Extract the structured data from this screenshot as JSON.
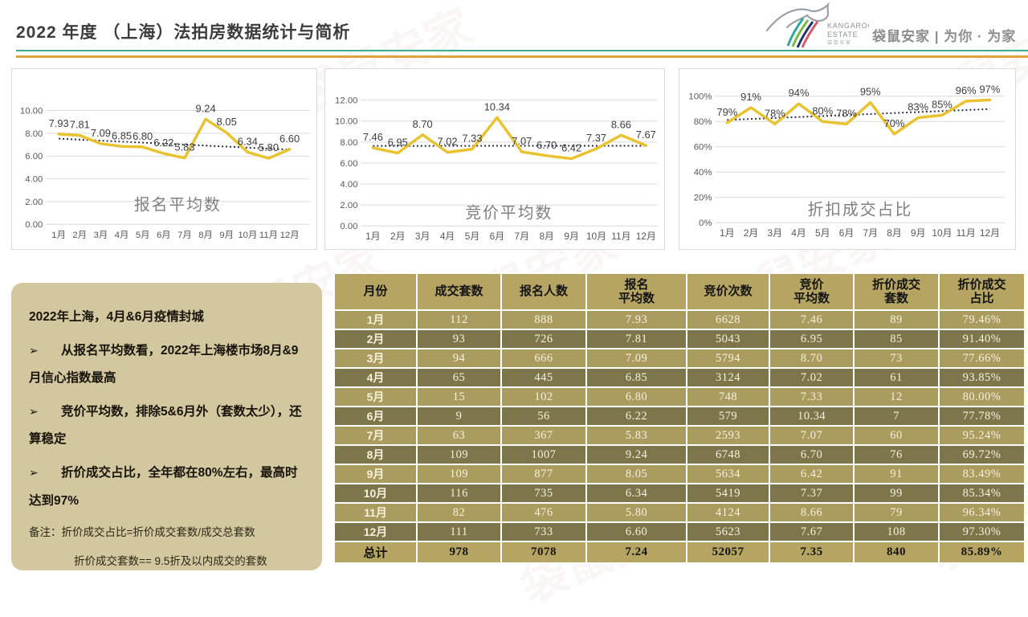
{
  "page": {
    "title": "2022 年度 （上海）法拍房数据统计与简析",
    "watermark": "袋鼠安家"
  },
  "logo": {
    "brand_line1": "KANGAROO",
    "brand_line2": "ESTATE",
    "brand_cn": "袋 鼠 安 家",
    "tagline": "袋鼠安家 | 为你 · 为家"
  },
  "chart_data": [
    {
      "type": "line",
      "title": "报名平均数",
      "categories": [
        "1月",
        "2月",
        "3月",
        "4月",
        "5月",
        "6月",
        "7月",
        "8月",
        "9月",
        "10月",
        "11月",
        "12月"
      ],
      "values": [
        7.93,
        7.81,
        7.09,
        6.85,
        6.8,
        6.22,
        5.83,
        9.24,
        8.05,
        6.34,
        5.8,
        6.6
      ],
      "labels": [
        "7.93",
        "7.81",
        "7.09",
        "6.85",
        "6.80",
        "6.22",
        "5.83",
        "9.24",
        "8.05",
        "6.34",
        "5.80",
        "6.60"
      ],
      "ylim": [
        0,
        10
      ],
      "ystep": 2,
      "yticks": [
        "0.00",
        "2.00",
        "4.00",
        "6.00",
        "8.00",
        "10.00"
      ],
      "grid": true,
      "legend": "none",
      "trendline": "linear-dotted"
    },
    {
      "type": "line",
      "title": "竞价平均数",
      "categories": [
        "1月",
        "2月",
        "3月",
        "4月",
        "5月",
        "6月",
        "7月",
        "8月",
        "9月",
        "10月",
        "11月",
        "12月"
      ],
      "values": [
        7.46,
        6.95,
        8.7,
        7.02,
        7.33,
        10.34,
        7.07,
        6.7,
        6.42,
        7.37,
        8.66,
        7.67
      ],
      "labels": [
        "7.46",
        "6.95",
        "8.70",
        "7.02",
        "7.33",
        "10.34",
        "7.07",
        "6.70",
        "6.42",
        "7.37",
        "8.66",
        "7.67"
      ],
      "ylim": [
        0,
        12
      ],
      "ystep": 2,
      "yticks": [
        "0.00",
        "2.00",
        "4.00",
        "6.00",
        "8.00",
        "10.00",
        "12.00"
      ],
      "grid": true,
      "legend": "none",
      "trendline": "linear-dotted"
    },
    {
      "type": "line",
      "title": "折扣成交占比",
      "categories": [
        "1月",
        "2月",
        "3月",
        "4月",
        "5月",
        "6月",
        "7月",
        "8月",
        "9月",
        "10月",
        "11月",
        "12月"
      ],
      "values": [
        79,
        91,
        78,
        94,
        80,
        78,
        95,
        70,
        83,
        85,
        96,
        97
      ],
      "labels": [
        "79%",
        "91%",
        "78%",
        "94%",
        "80%",
        "78%",
        "95%",
        "70%",
        "83%",
        "85%",
        "96%",
        "97%"
      ],
      "ylim": [
        0,
        100
      ],
      "ystep": 20,
      "yticks": [
        "0%",
        "20%",
        "40%",
        "60%",
        "80%",
        "100%"
      ],
      "grid": true,
      "legend": "none",
      "trendline": "linear-dotted"
    }
  ],
  "notes": {
    "intro": "2022年上海，4月&6月疫情封城",
    "bullet_marker": "➢",
    "bullets": [
      "从报名平均数看，2022年上海楼市场8月&9月信心指数最高",
      "竞价平均数，排除5&6月外（套数太少），还算稳定",
      "折价成交占比，全年都在80%左右，最高时达到97%"
    ],
    "remark1": "备注：折价成交占比=折价成交套数/成交总套数",
    "remark2": "折价成交套数== 9.5折及以内成交的套数"
  },
  "table": {
    "columns": [
      "月份",
      "成交套数",
      "报名人数",
      "报名\n平均数",
      "竞价次数",
      "竞价\n平均数",
      "折价成交\n套数",
      "折价成交\n占比"
    ],
    "rows": [
      [
        "1月",
        "112",
        "888",
        "7.93",
        "6628",
        "7.46",
        "89",
        "79.46%"
      ],
      [
        "2月",
        "93",
        "726",
        "7.81",
        "5043",
        "6.95",
        "85",
        "91.40%"
      ],
      [
        "3月",
        "94",
        "666",
        "7.09",
        "5794",
        "8.70",
        "73",
        "77.66%"
      ],
      [
        "4月",
        "65",
        "445",
        "6.85",
        "3124",
        "7.02",
        "61",
        "93.85%"
      ],
      [
        "5月",
        "15",
        "102",
        "6.80",
        "748",
        "7.33",
        "12",
        "80.00%"
      ],
      [
        "6月",
        "9",
        "56",
        "6.22",
        "579",
        "10.34",
        "7",
        "77.78%"
      ],
      [
        "7月",
        "63",
        "367",
        "5.83",
        "2593",
        "7.07",
        "60",
        "95.24%"
      ],
      [
        "8月",
        "109",
        "1007",
        "9.24",
        "6748",
        "6.70",
        "76",
        "69.72%"
      ],
      [
        "9月",
        "109",
        "877",
        "8.05",
        "5634",
        "6.42",
        "91",
        "83.49%"
      ],
      [
        "10月",
        "116",
        "735",
        "6.34",
        "5419",
        "7.37",
        "99",
        "85.34%"
      ],
      [
        "11月",
        "82",
        "476",
        "5.80",
        "4124",
        "8.66",
        "79",
        "96.34%"
      ],
      [
        "12月",
        "111",
        "733",
        "6.60",
        "5623",
        "7.67",
        "108",
        "97.30%"
      ]
    ],
    "total": [
      "总计",
      "978",
      "7078",
      "7.24",
      "52057",
      "7.35",
      "840",
      "85.89%"
    ]
  },
  "colors": {
    "line": "#e9c32f",
    "trend": "#232e44",
    "grid": "#d9d9d9",
    "header_bg": "#b5a462",
    "row_light": "#aa9c5f",
    "row_dark": "#7e764b",
    "note_bg": "#d2c79e",
    "divider_green": "#3dac8c",
    "divider_orange": "#e2a140"
  }
}
